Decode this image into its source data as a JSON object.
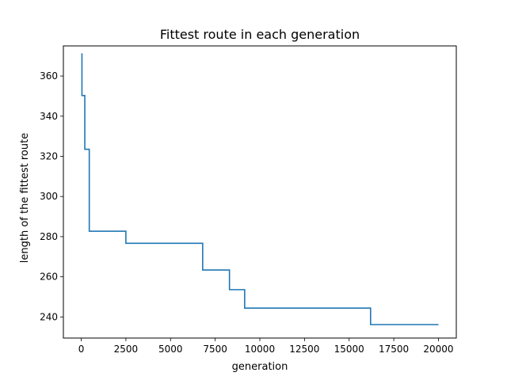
{
  "chart_data": {
    "type": "line",
    "title": "Fittest route in each generation",
    "xlabel": "generation",
    "ylabel": "length of the fittest route",
    "xlim": [
      -1000,
      21000
    ],
    "ylim": [
      229.5,
      375
    ],
    "xticks": [
      0,
      2500,
      5000,
      7500,
      10000,
      12500,
      15000,
      17500,
      20000
    ],
    "xtick_labels": [
      "0",
      "2500",
      "5000",
      "7500",
      "10000",
      "12500",
      "15000",
      "17500",
      "20000"
    ],
    "yticks": [
      240,
      260,
      280,
      300,
      320,
      340,
      360
    ],
    "ytick_labels": [
      "240",
      "260",
      "280",
      "300",
      "320",
      "340",
      "360"
    ],
    "grid": false,
    "line_color": "#1f77b4",
    "series": [
      {
        "step": "post",
        "x": [
          0,
          40,
          200,
          450,
          2500,
          6800,
          8300,
          9150,
          16200,
          20000
        ],
        "y": [
          371.0,
          350.3,
          323.5,
          282.7,
          276.7,
          263.4,
          253.6,
          244.4,
          236.2,
          236.2
        ]
      }
    ]
  }
}
